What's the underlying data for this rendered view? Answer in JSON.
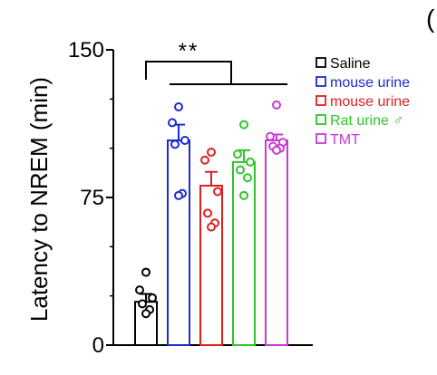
{
  "chart_data": {
    "type": "bar",
    "ylabel": "Latency to NREM (min)",
    "xlabel": "",
    "ylim": [
      0,
      150
    ],
    "yticks": [
      0,
      75,
      150
    ],
    "grid": false,
    "legend_position": "right",
    "significance": "**",
    "series": [
      {
        "name": "Saline",
        "color": "#000000",
        "mean": 22,
        "sem": 4,
        "points": [
          37,
          28,
          24,
          21,
          18,
          16
        ]
      },
      {
        "name": "mouse urine",
        "color": "#1f2ad4",
        "mean": 104,
        "sem": 8,
        "points": [
          121,
          113,
          104,
          102,
          77,
          76
        ]
      },
      {
        "name": "mouse urine",
        "color": "#e01f1f",
        "mean": 81,
        "sem": 7,
        "points": [
          98,
          94,
          78,
          67,
          62,
          60
        ]
      },
      {
        "name": "Rat urine ♂",
        "color": "#2ec52b",
        "mean": 93,
        "sem": 6,
        "points": [
          112,
          97,
          93,
          89,
          85,
          76
        ]
      },
      {
        "name": "TMT",
        "color": "#c83ad6",
        "mean": 104,
        "sem": 3,
        "points": [
          122,
          106,
          103,
          101,
          100,
          99
        ]
      }
    ]
  },
  "page_edge_glyph": "("
}
